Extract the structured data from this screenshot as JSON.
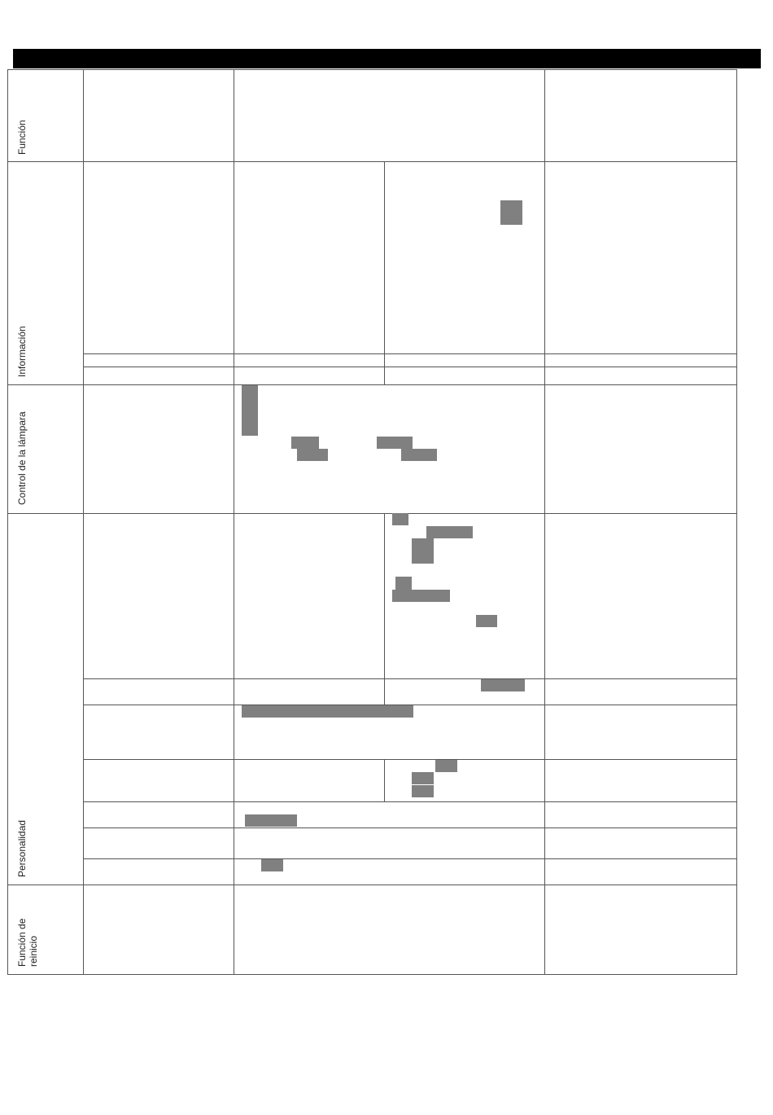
{
  "document": {
    "header": {
      "fill": "#000000"
    },
    "redaction_color": "#808080",
    "sections": [
      {
        "label": "Función"
      },
      {
        "label": "Información"
      },
      {
        "label": "Control de la lámpara"
      },
      {
        "label": "Personalidad"
      },
      {
        "label_line1": "Función de",
        "label_line2": "reinicio"
      }
    ]
  }
}
